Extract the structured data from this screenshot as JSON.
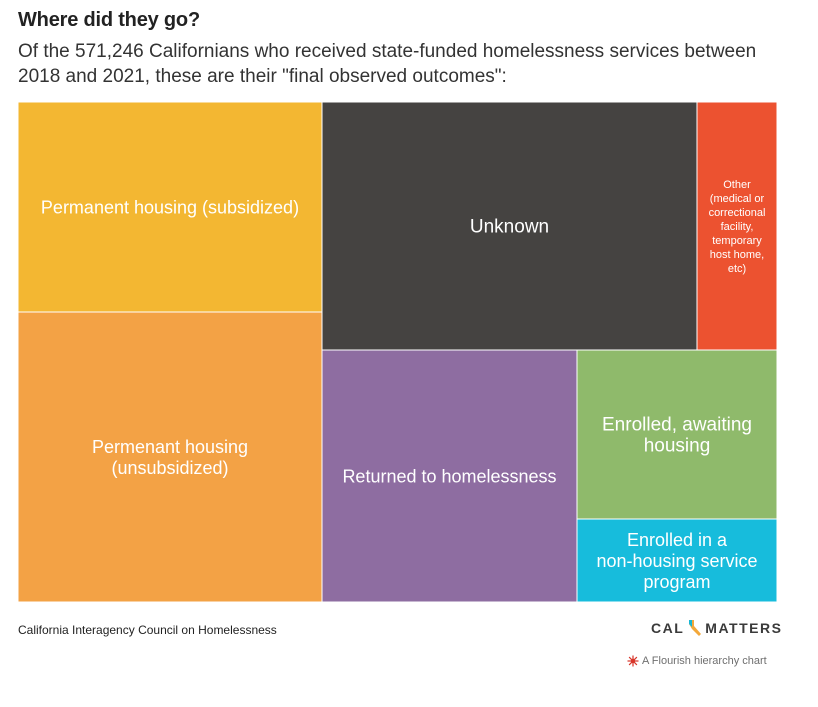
{
  "header": {
    "title": "Where did they go?",
    "subtitle": "Of the 571,246 Californians who received state-funded homelessness services between 2018 and 2021, these are their \"final observed outcomes\":"
  },
  "chart_data": {
    "type": "treemap",
    "title": "Where did they go?",
    "subtitle": "Of the 571,246 Californians who received state-funded homelessness services between 2018 and 2021, these are their \"final observed outcomes\":",
    "total": 571246,
    "nodes": [
      {
        "label": "Permanent housing (subsidized)",
        "share_pct": 14.4,
        "color": "#f3b732"
      },
      {
        "label": "Permenant housing (unsubsidized)",
        "share_pct": 20.0,
        "color": "#f3a245"
      },
      {
        "label": "Unknown",
        "share_pct": 22.1,
        "color": "#454341"
      },
      {
        "label": "Other (medical or correctional facility, temporary host home, etc)",
        "share_pct": 4.6,
        "color": "#ec5230"
      },
      {
        "label": "Returned to homelessness",
        "share_pct": 17.5,
        "color": "#8e6da1"
      },
      {
        "label": "Enrolled, awaiting housing",
        "share_pct": 13.1,
        "color": "#8fba6b"
      },
      {
        "label": "Enrolled in a non-housing service program",
        "share_pct": 8.3,
        "color": "#17bcdc"
      }
    ]
  },
  "footer": {
    "source": "California Interagency Council on Homelessness",
    "logo_left": "CAL",
    "logo_right": "MATTERS",
    "credit": "A Flourish hierarchy chart",
    "colors": {
      "logo_mark": "#f3a83a",
      "logo_mark_accent": "#17b6d6",
      "credit_icon": "#d8362a"
    }
  }
}
